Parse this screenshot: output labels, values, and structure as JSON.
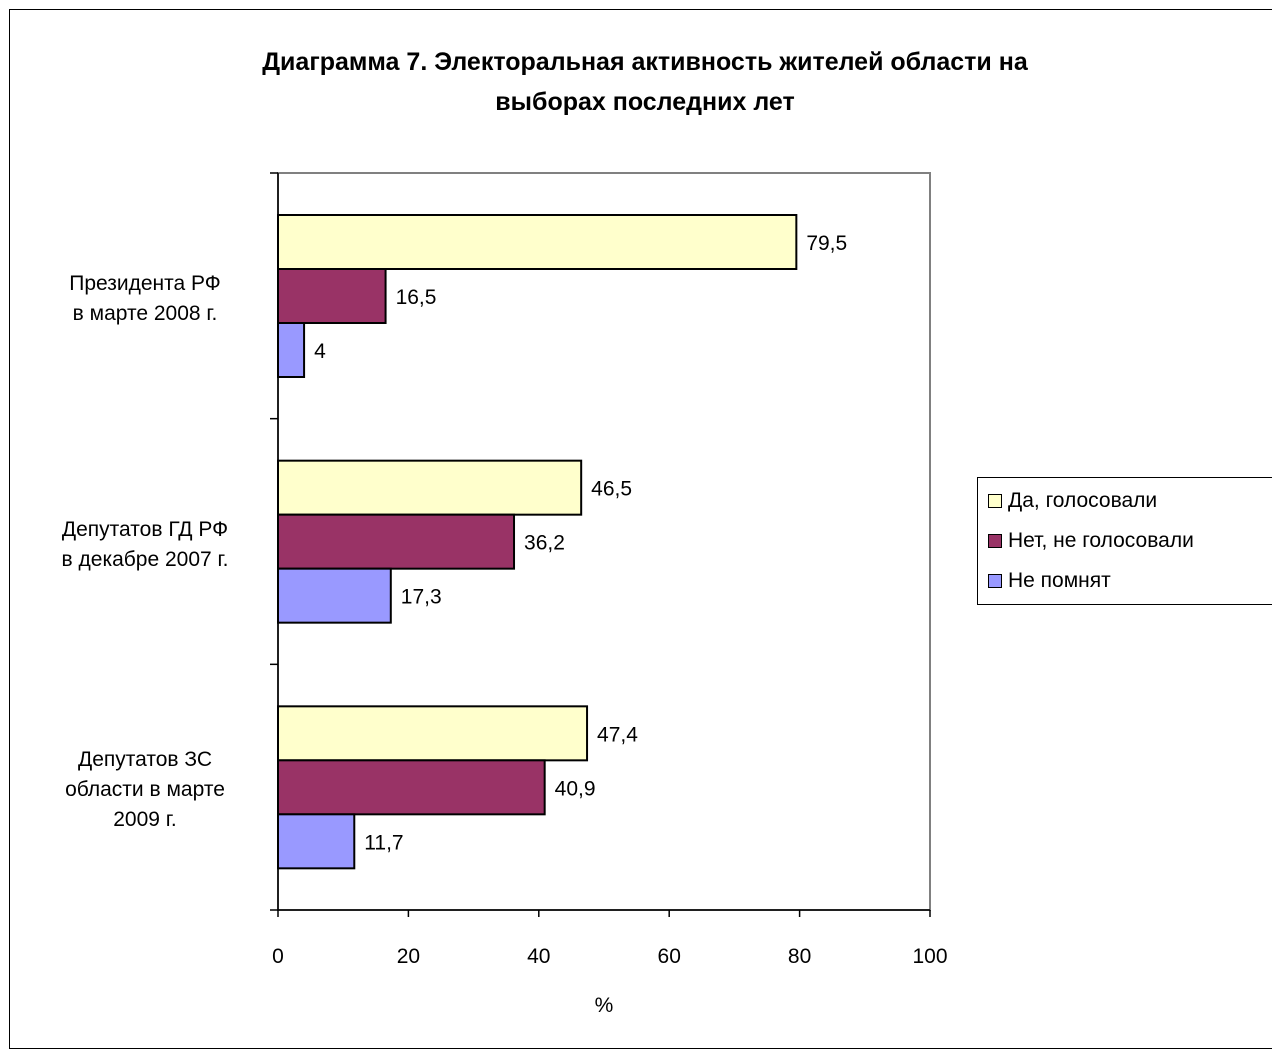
{
  "chart_data": {
    "type": "bar",
    "orientation": "horizontal",
    "title": "Диаграмма 7. Электоральная активность жителей области на выборах последних лет",
    "title_lines": [
      "Диаграмма 7. Электоральная активность жителей области на",
      "выборах последних лет"
    ],
    "categories": [
      "Президента РФ в марте 2008 г.",
      "Депутатов ГД РФ в декабре 2007 г.",
      "Депутатов ЗС области в марте 2009 г."
    ],
    "category_lines": [
      [
        "Президента РФ",
        "в марте 2008 г."
      ],
      [
        "Депутатов ГД РФ",
        "в декабре 2007 г."
      ],
      [
        "Депутатов ЗС",
        "области в марте",
        "2009 г."
      ]
    ],
    "series": [
      {
        "name": "Да, голосовали",
        "values": [
          79.5,
          46.5,
          47.4
        ],
        "labels": [
          "79,5",
          "46,5",
          "47,4"
        ],
        "color": "#ffffcc"
      },
      {
        "name": "Нет, не голосовали",
        "values": [
          16.5,
          36.2,
          40.9
        ],
        "labels": [
          "16,5",
          "36,2",
          "40,9"
        ],
        "color": "#993366"
      },
      {
        "name": "Не помнят",
        "values": [
          4,
          17.3,
          11.7
        ],
        "labels": [
          "4",
          "17,3",
          "11,7"
        ],
        "color": "#9999ff"
      }
    ],
    "xlabel": "%",
    "xlim": [
      0,
      100
    ],
    "xticks": [
      0,
      20,
      40,
      60,
      80,
      100
    ],
    "legend_position": "right",
    "grid": false
  }
}
